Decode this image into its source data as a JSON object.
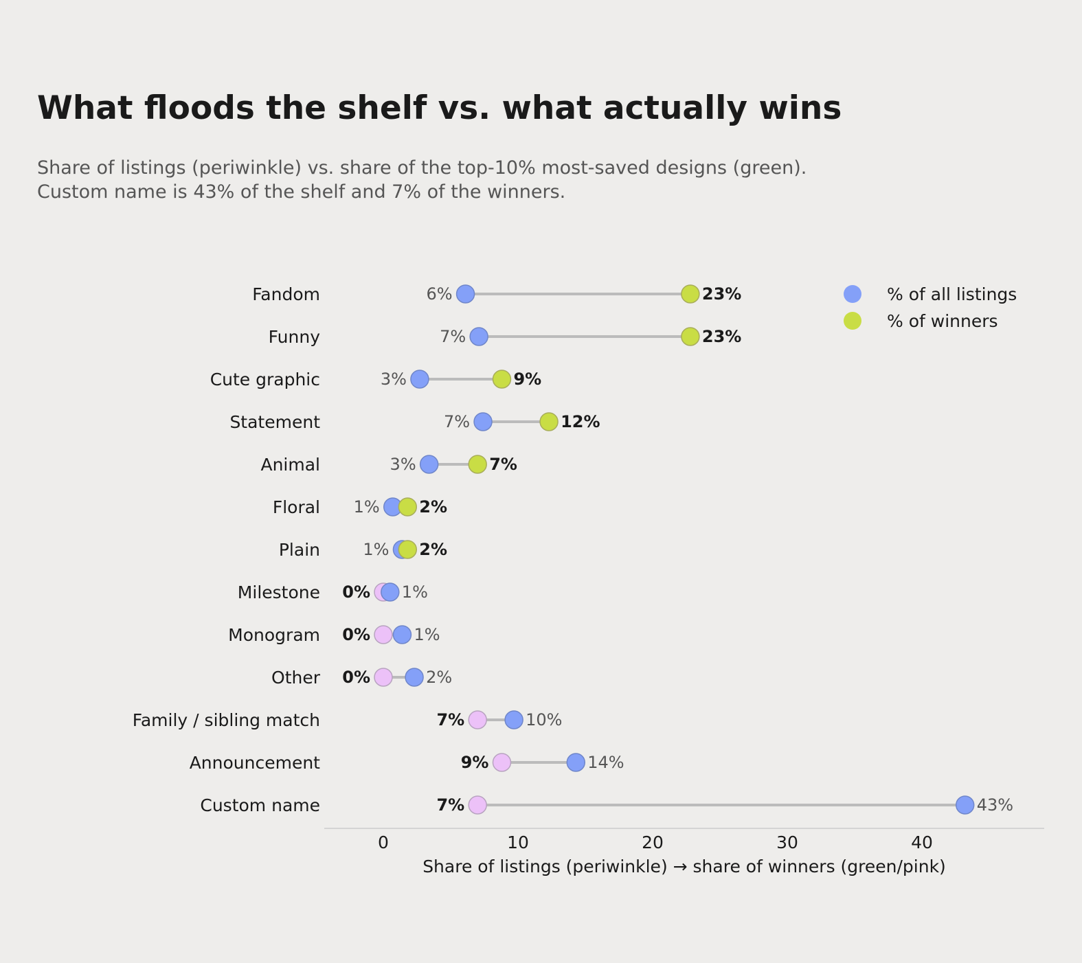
{
  "title": "What floods the shelf vs. what actually wins",
  "subtitle_lines": [
    "Share of listings (periwinkle) vs. share of the top-10% most-saved designs (green).",
    "Custom name is 43% of the shelf and 7% of the winners."
  ],
  "colors": {
    "background": "#eeedeb",
    "listings": "#84a0f8",
    "winners_up": "#c9dd45",
    "winners_down": "#ecc1f8",
    "connector": "#bbbbbb",
    "axis": "#cccccc"
  },
  "chart_data": {
    "type": "dumbbell",
    "xlabel": "Share of listings (periwinkle)  →  share of winners (green/pink)",
    "xlim": [
      -4.3,
      49
    ],
    "xticks": [
      0,
      10,
      20,
      30,
      40
    ],
    "legend": {
      "placement": "top-right",
      "entries": [
        "% of all listings",
        "% of winners"
      ]
    },
    "categories": [
      "Fandom",
      "Funny",
      "Cute graphic",
      "Statement",
      "Animal",
      "Floral",
      "Plain",
      "Milestone",
      "Monogram",
      "Other",
      "Family / sibling match",
      "Announcement",
      "Custom name"
    ],
    "series": [
      {
        "name": "% of all listings",
        "values": [
          6.1,
          7.1,
          2.7,
          7.4,
          3.4,
          0.7,
          1.4,
          0.5,
          1.4,
          2.3,
          9.7,
          14.3,
          43.2
        ],
        "labels": [
          "6%",
          "7%",
          "3%",
          "7%",
          "3%",
          "1%",
          "1%",
          "1%",
          "1%",
          "2%",
          "10%",
          "14%",
          "43%"
        ]
      },
      {
        "name": "% of winners",
        "values": [
          22.8,
          22.8,
          8.8,
          12.3,
          7.0,
          1.8,
          1.8,
          0,
          0,
          0,
          7.0,
          8.8,
          7.0
        ],
        "labels": [
          "23%",
          "23%",
          "9%",
          "12%",
          "7%",
          "2%",
          "2%",
          "0%",
          "0%",
          "0%",
          "7%",
          "9%",
          "7%"
        ]
      }
    ]
  }
}
